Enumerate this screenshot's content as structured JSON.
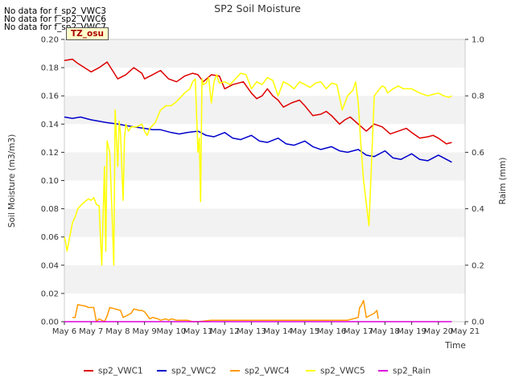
{
  "notices": [
    "No data for f_sp2_VWC3",
    "No data for f_sp2_VWC6",
    "No data for f_sp2_VWC7"
  ],
  "tz_label": "TZ_osu",
  "chart_data": {
    "type": "line",
    "title": "SP2 Soil Moisture",
    "xlabel": "Time",
    "ylabel": "Soil Moisture (m3/m3)",
    "y2label": "Raim (mm)",
    "xlim": [
      6,
      21
    ],
    "ylim": [
      0,
      0.2
    ],
    "y2lim": [
      0,
      1.0
    ],
    "x_ticks": [
      6,
      7,
      8,
      9,
      10,
      11,
      12,
      13,
      14,
      15,
      16,
      17,
      18,
      19,
      20,
      21
    ],
    "x_tick_labels": [
      "May 6",
      "May 7",
      "May 8",
      "May 9",
      "May 10",
      "May 11",
      "May 12",
      "May 13",
      "May 14",
      "May 15",
      "May 16",
      "May 17",
      "May 18",
      "May 19",
      "May 20",
      "May 21"
    ],
    "y_ticks": [
      "0.00",
      "0.02",
      "0.04",
      "0.06",
      "0.08",
      "0.10",
      "0.12",
      "0.14",
      "0.16",
      "0.18",
      "0.20"
    ],
    "y2_ticks": [
      "0.0",
      "0.2",
      "0.4",
      "0.6",
      "0.8",
      "1.0"
    ],
    "grid": "horizontal bands",
    "legend_position": "bottom",
    "series": [
      {
        "name": "sp2_VWC1",
        "color": "#dd0000",
        "axis": "left",
        "x": [
          6.0,
          6.3,
          6.5,
          7.0,
          7.3,
          7.6,
          7.8,
          8.0,
          8.3,
          8.6,
          8.9,
          9.0,
          9.3,
          9.6,
          9.9,
          10.2,
          10.5,
          10.8,
          11.0,
          11.2,
          11.5,
          11.8,
          12.0,
          12.3,
          12.7,
          13.0,
          13.2,
          13.4,
          13.6,
          13.8,
          14.0,
          14.2,
          14.5,
          14.8,
          15.0,
          15.3,
          15.6,
          15.8,
          16.0,
          16.3,
          16.5,
          16.7,
          17.0,
          17.3,
          17.6,
          17.9,
          18.2,
          18.5,
          18.8,
          19.0,
          19.3,
          19.6,
          19.8,
          20.0,
          20.3,
          20.5
        ],
        "y": [
          0.185,
          0.186,
          0.183,
          0.177,
          0.18,
          0.184,
          0.178,
          0.172,
          0.175,
          0.18,
          0.176,
          0.172,
          0.175,
          0.178,
          0.172,
          0.17,
          0.174,
          0.176,
          0.175,
          0.17,
          0.175,
          0.174,
          0.165,
          0.168,
          0.17,
          0.162,
          0.158,
          0.16,
          0.165,
          0.16,
          0.157,
          0.152,
          0.155,
          0.157,
          0.153,
          0.146,
          0.147,
          0.149,
          0.146,
          0.14,
          0.143,
          0.145,
          0.14,
          0.135,
          0.14,
          0.138,
          0.133,
          0.135,
          0.137,
          0.134,
          0.13,
          0.131,
          0.132,
          0.13,
          0.126,
          0.127
        ]
      },
      {
        "name": "sp2_VWC2",
        "color": "#0000cc",
        "axis": "left",
        "x": [
          6.0,
          6.3,
          6.6,
          7.0,
          7.3,
          7.6,
          8.0,
          8.3,
          8.6,
          9.0,
          9.3,
          9.6,
          10.0,
          10.3,
          10.6,
          11.0,
          11.3,
          11.6,
          12.0,
          12.3,
          12.6,
          13.0,
          13.3,
          13.6,
          14.0,
          14.3,
          14.6,
          15.0,
          15.3,
          15.6,
          16.0,
          16.3,
          16.6,
          17.0,
          17.3,
          17.6,
          18.0,
          18.3,
          18.6,
          19.0,
          19.3,
          19.6,
          20.0,
          20.3,
          20.5
        ],
        "y": [
          0.145,
          0.144,
          0.145,
          0.143,
          0.142,
          0.141,
          0.14,
          0.139,
          0.138,
          0.137,
          0.136,
          0.136,
          0.134,
          0.133,
          0.134,
          0.135,
          0.132,
          0.131,
          0.134,
          0.13,
          0.129,
          0.132,
          0.128,
          0.127,
          0.13,
          0.126,
          0.125,
          0.128,
          0.124,
          0.122,
          0.124,
          0.121,
          0.12,
          0.122,
          0.118,
          0.117,
          0.121,
          0.116,
          0.115,
          0.119,
          0.115,
          0.114,
          0.118,
          0.115,
          0.113
        ]
      },
      {
        "name": "sp2_VWC4",
        "color": "#ff9900",
        "axis": "left",
        "x": [
          6.3,
          6.4,
          6.5,
          6.8,
          6.9,
          7.1,
          7.2,
          7.3,
          7.5,
          7.6,
          7.7,
          7.9,
          8.1,
          8.2,
          8.3,
          8.5,
          8.6,
          8.8,
          8.9,
          9.0,
          9.2,
          9.3,
          9.5,
          9.6,
          9.8,
          9.9,
          10.0,
          10.2,
          10.4,
          10.6,
          10.8,
          11.0,
          11.5,
          12.0,
          13.0,
          14.0,
          15.0,
          16.0,
          16.6,
          16.8,
          17.0,
          17.05,
          17.1,
          17.2,
          17.3,
          17.4,
          17.6,
          17.7,
          17.75
        ],
        "y": [
          0.003,
          0.003,
          0.012,
          0.011,
          0.01,
          0.01,
          0.0,
          0.002,
          0.0,
          0.004,
          0.01,
          0.009,
          0.008,
          0.003,
          0.004,
          0.006,
          0.009,
          0.008,
          0.008,
          0.007,
          0.002,
          0.003,
          0.002,
          0.001,
          0.002,
          0.001,
          0.002,
          0.001,
          0.001,
          0.001,
          0.0,
          0.0,
          0.001,
          0.001,
          0.001,
          0.001,
          0.001,
          0.001,
          0.001,
          0.002,
          0.003,
          0.01,
          0.011,
          0.015,
          0.003,
          0.004,
          0.006,
          0.008,
          0.002
        ]
      },
      {
        "name": "sp2_VWC5",
        "color": "#ffff00",
        "axis": "left",
        "x": [
          6.0,
          6.05,
          6.1,
          6.2,
          6.3,
          6.4,
          6.5,
          6.7,
          6.9,
          7.0,
          7.1,
          7.2,
          7.3,
          7.35,
          7.4,
          7.5,
          7.55,
          7.6,
          7.7,
          7.8,
          7.85,
          7.9,
          8.0,
          8.05,
          8.1,
          8.2,
          8.25,
          8.3,
          8.4,
          8.5,
          8.7,
          8.9,
          9.0,
          9.1,
          9.2,
          9.4,
          9.6,
          9.8,
          10.0,
          10.2,
          10.5,
          10.7,
          10.8,
          10.9,
          11.0,
          11.05,
          11.1,
          11.15,
          11.2,
          11.3,
          11.4,
          11.5,
          11.6,
          11.7,
          11.8,
          12.0,
          12.2,
          12.4,
          12.6,
          12.8,
          13.0,
          13.2,
          13.4,
          13.6,
          13.8,
          14.0,
          14.2,
          14.4,
          14.6,
          14.8,
          15.0,
          15.2,
          15.4,
          15.6,
          15.8,
          16.0,
          16.2,
          16.4,
          16.6,
          16.8,
          16.9,
          17.0,
          17.1,
          17.2,
          17.4,
          17.6,
          17.8,
          17.9,
          18.0,
          18.1,
          18.3,
          18.5,
          18.7,
          19.0,
          19.3,
          19.6,
          19.8,
          20.0,
          20.2,
          20.4,
          20.5
        ],
        "y": [
          0.06,
          0.056,
          0.05,
          0.06,
          0.07,
          0.074,
          0.08,
          0.084,
          0.087,
          0.086,
          0.088,
          0.083,
          0.082,
          0.06,
          0.04,
          0.11,
          0.05,
          0.128,
          0.12,
          0.068,
          0.04,
          0.15,
          0.11,
          0.142,
          0.134,
          0.086,
          0.13,
          0.14,
          0.135,
          0.138,
          0.138,
          0.14,
          0.135,
          0.132,
          0.137,
          0.141,
          0.15,
          0.153,
          0.153,
          0.156,
          0.162,
          0.165,
          0.17,
          0.172,
          0.12,
          0.13,
          0.085,
          0.172,
          0.168,
          0.169,
          0.173,
          0.155,
          0.17,
          0.175,
          0.169,
          0.17,
          0.168,
          0.172,
          0.176,
          0.175,
          0.165,
          0.17,
          0.168,
          0.173,
          0.171,
          0.16,
          0.17,
          0.168,
          0.165,
          0.17,
          0.168,
          0.166,
          0.169,
          0.17,
          0.165,
          0.169,
          0.168,
          0.15,
          0.16,
          0.164,
          0.17,
          0.155,
          0.125,
          0.1,
          0.068,
          0.16,
          0.165,
          0.167,
          0.166,
          0.162,
          0.165,
          0.167,
          0.165,
          0.165,
          0.162,
          0.16,
          0.161,
          0.162,
          0.16,
          0.159,
          0.16
        ]
      },
      {
        "name": "sp2_Rain",
        "color": "#dd00dd",
        "axis": "right",
        "x": [
          6.0,
          20.5
        ],
        "y": [
          0.0,
          0.0
        ]
      }
    ]
  }
}
